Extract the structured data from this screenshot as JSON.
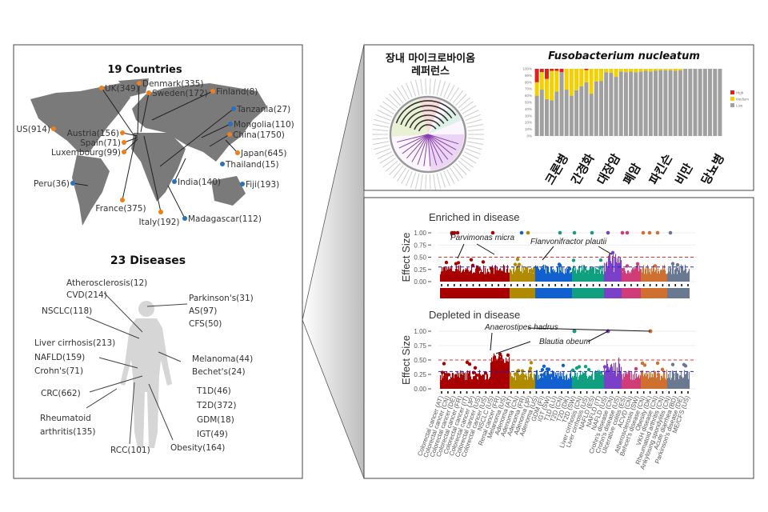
{
  "colors": {
    "orange": "#f07f1a",
    "blue": "#2a72c0",
    "map": "#7a7a7a",
    "body": "#d6d6d6",
    "line": "#333333"
  },
  "countries": {
    "title": "19 Countries",
    "items": [
      {
        "label": "UK(349)",
        "group": "orange"
      },
      {
        "label": "Denmark(335)",
        "group": "orange"
      },
      {
        "label": "Sweden(172)",
        "group": "orange"
      },
      {
        "label": "Finland(8)",
        "group": "orange"
      },
      {
        "label": "Tanzania(27)",
        "group": "blue"
      },
      {
        "label": "Mongolia(110)",
        "group": "blue"
      },
      {
        "label": "China(1750)",
        "group": "orange"
      },
      {
        "label": "Japan(645)",
        "group": "orange"
      },
      {
        "label": "Thailand(15)",
        "group": "blue"
      },
      {
        "label": "Fiji(193)",
        "group": "blue"
      },
      {
        "label": "India(140)",
        "group": "blue"
      },
      {
        "label": "Madagascar(112)",
        "group": "blue"
      },
      {
        "label": "Italy(192)",
        "group": "orange"
      },
      {
        "label": "France(375)",
        "group": "orange"
      },
      {
        "label": "Peru(36)",
        "group": "blue"
      },
      {
        "label": "US(914)",
        "group": "orange"
      },
      {
        "label": "Austria(156)",
        "group": "orange"
      },
      {
        "label": "Spain(71)",
        "group": "orange"
      },
      {
        "label": "Luxembourg(99)",
        "group": "orange"
      }
    ]
  },
  "diseases": {
    "title": "23 Diseases",
    "items": [
      "Atherosclerosis(12)",
      "CVD(214)",
      "NSCLC(118)",
      "Parkinson's(31)",
      "AS(97)",
      "CFS(50)",
      "Liver cirrhosis(213)",
      "NAFLD(159)",
      "Crohn's(71)",
      "Melanoma(44)",
      "Bechet's(24)",
      "CRC(662)",
      "T1D(46)",
      "T2D(372)",
      "GDM(18)",
      "IGT(49)",
      "Rheumatoid",
      "arthritis(135)",
      "RCC(101)",
      "Obesity(164)"
    ]
  },
  "reference": {
    "title_line1": "장내 마이크로바이옴",
    "title_line2": "레퍼런스"
  },
  "chart_data": [
    {
      "type": "bar",
      "stacked": true,
      "title": "Fusobacterium nucleatum",
      "yticks": [
        "0%",
        "10%",
        "20%",
        "30%",
        "40%",
        "50%",
        "60%",
        "70%",
        "80%",
        "90%",
        "100%"
      ],
      "ylim": [
        0,
        100
      ],
      "category_labels": [
        "크론병",
        "간경화",
        "대장암",
        "폐암",
        "파킨슨",
        "비만",
        "당뇨병"
      ],
      "legend": {
        "position": "right",
        "entries": [
          {
            "name": "High",
            "color": "#e02020"
          },
          {
            "name": "Medium",
            "color": "#f5d000"
          },
          {
            "name": "Low",
            "color": "#a0a0a0"
          }
        ]
      },
      "series": [
        {
          "name": "Low",
          "values": [
            60,
            69,
            55,
            53,
            66,
            95,
            69,
            60,
            68,
            74,
            80,
            63,
            81,
            82,
            95,
            94,
            88,
            96,
            95,
            96,
            95,
            96,
            97,
            96,
            97,
            98,
            98,
            98,
            97,
            98,
            100,
            100,
            100,
            100,
            100,
            100,
            100,
            100
          ]
        },
        {
          "name": "Medium",
          "values": [
            20,
            26,
            30,
            44,
            31,
            0,
            31,
            40,
            32,
            26,
            18,
            37,
            19,
            18,
            5,
            6,
            12,
            4,
            5,
            4,
            5,
            4,
            3,
            4,
            3,
            2,
            2,
            2,
            3,
            2,
            0,
            0,
            0,
            0,
            0,
            0,
            0,
            0
          ]
        },
        {
          "name": "High",
          "values": [
            20,
            5,
            15,
            3,
            3,
            5,
            0,
            0,
            0,
            0,
            2,
            0,
            0,
            0,
            0,
            0,
            0,
            0,
            0,
            0,
            0,
            0,
            0,
            0,
            0,
            0,
            0,
            0,
            0,
            0,
            0,
            0,
            0,
            0,
            0,
            0,
            0,
            0
          ]
        }
      ]
    },
    {
      "type": "scatter",
      "title": "Enriched in disease",
      "ylabel": "Effect Size",
      "yticks": [
        "0.00",
        "0.25",
        "0.50",
        "0.75",
        "1.00"
      ],
      "ylim": [
        0,
        1
      ],
      "thresholds": [
        {
          "value": 0.5,
          "color": "#e03030"
        },
        {
          "value": 0.3,
          "color": "#2020d0"
        }
      ],
      "annotations": [
        "Parvimonas micra",
        "Flanvonifractor plautii"
      ]
    },
    {
      "type": "scatter",
      "title": "Depleted in disease",
      "ylabel": "Effect Size",
      "yticks": [
        "0.00",
        "0.25",
        "0.50",
        "0.75",
        "1.00"
      ],
      "ylim": [
        0,
        1
      ],
      "thresholds": [
        {
          "value": 0.5,
          "color": "#e03030"
        },
        {
          "value": 0.3,
          "color": "#2020d0"
        }
      ],
      "annotations": [
        "Anaerostipes hadrus",
        "Blautia obeum"
      ],
      "group_colors": [
        "#a80000",
        "#b08a00",
        "#1060d0",
        "#10a080",
        "#7a40c8",
        "#d03c78",
        "#d07030",
        "#6a7890"
      ],
      "xticks": [
        "Colorectal cancer (AT)",
        "Colorectal cancer (CN)",
        "Colorectal cancer (DE)",
        "Colorectal cancer (FR)",
        "Colorectal cancer (IT)",
        "Colorectal cancer (JP)",
        "Colorectal cancer (US)",
        "Colorectal cancer (US)",
        "NSCLC (US)",
        "Renal cancer (FR)",
        "Melanoma (US)",
        "Adenoma (AT)",
        "Adenoma (CN)",
        "Adenoma (FR)",
        "Adenoma (JP)",
        "Adenoma (US)",
        "GDM (FI)",
        "IGT (SW)",
        "T1D (LU)",
        "T2D (CN)",
        "T2D (DK)",
        "T2D (SW)",
        "Liver cirrhosis (CN)",
        "Liver cirrhosis (US)",
        "NAFLD (ES)",
        "NAFLD (IT)",
        "NAFLD (US)",
        "Crohn's disease (CN)",
        "Crohn's disease (US)",
        "Ulcerative colitis (ES)",
        "ACVD (CN)",
        "Atherosclerosis (SW)",
        "Behcet's disease (CN)",
        "Obesity (DK)",
        "VKH disease (CN)",
        "Rheumatoid arthritis (CN)",
        "Ankylosing spondylitis (CN)",
        "Acute diarrhea (BD)",
        "Parkinson's disease (DE)",
        "ME/CFS (US)"
      ]
    }
  ]
}
